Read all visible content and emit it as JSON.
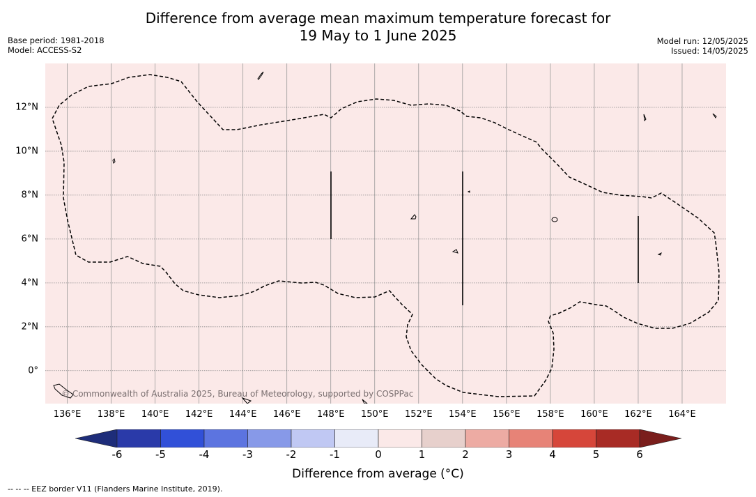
{
  "title": {
    "line1": "Difference from average mean maximum temperature forecast for",
    "line2": "19 May to 1 June 2025"
  },
  "meta_left": {
    "base_period": "Base period: 1981-2018",
    "model": "Model: ACCESS-S2"
  },
  "meta_right": {
    "model_run": "Model run: 12/05/2025",
    "issued": "Issued: 14/05/2025"
  },
  "map": {
    "fill_color": "#fbe9e8",
    "lon_range": [
      135.0,
      166.0
    ],
    "lat_range": [
      -1.5,
      14.0
    ],
    "lon_ticks": [
      "136°E",
      "138°E",
      "140°E",
      "142°E",
      "144°E",
      "146°E",
      "148°E",
      "150°E",
      "152°E",
      "154°E",
      "156°E",
      "158°E",
      "160°E",
      "162°E",
      "164°E"
    ],
    "lat_ticks": [
      "12°N",
      "10°N",
      "8°N",
      "6°N",
      "4°N",
      "2°N",
      "0°"
    ],
    "copyright": "© Commonwealth of Australia 2025, Bureau of Meteorology, supported by COSPPac"
  },
  "colorbar": {
    "title": "Difference from average (°C)",
    "ticks": [
      "-6",
      "-5",
      "-4",
      "-3",
      "-2",
      "-1",
      "0",
      "1",
      "2",
      "3",
      "4",
      "5",
      "6"
    ],
    "colors": [
      "#1e2d7a",
      "#2a3aa9",
      "#3150d8",
      "#5c74e0",
      "#8799e8",
      "#c0c8f3",
      "#e8ebf8",
      "#fbe9e8",
      "#e7d0cc",
      "#edaba3",
      "#e78377",
      "#d6463a",
      "#a82b25",
      "#7a1e1c"
    ],
    "current_category_color": "#fbe9e8",
    "current_category_range": "0 to 1"
  },
  "footnote": "--  --  -- EEZ border V11 (Flanders Marine Institute, 2019)."
}
